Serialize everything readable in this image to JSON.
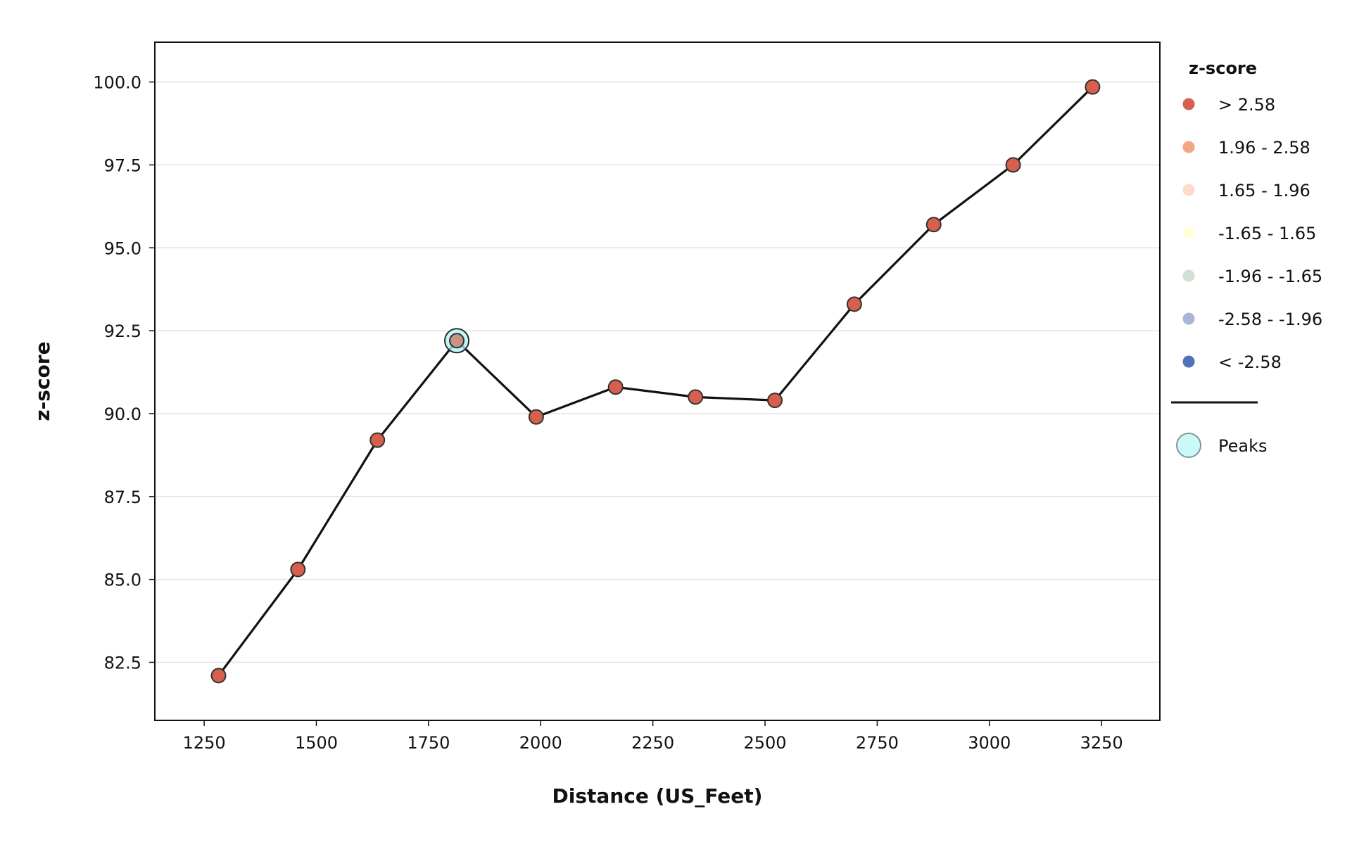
{
  "chart_data": {
    "type": "line",
    "xlabel": "Distance (US_Feet)",
    "ylabel": "z-score",
    "xlim": [
      1140,
      3380
    ],
    "ylim": [
      80.75,
      101.2
    ],
    "xticks": [
      1250,
      1500,
      1750,
      2000,
      2250,
      2500,
      2750,
      3000,
      3250
    ],
    "xtick_labels": [
      "1250",
      "1500",
      "1750",
      "2000",
      "2250",
      "2500",
      "2750",
      "3000",
      "3250"
    ],
    "yticks": [
      82.5,
      85.0,
      87.5,
      90.0,
      92.5,
      95.0,
      97.5,
      100.0
    ],
    "ytick_labels": [
      "82.5",
      "85.0",
      "87.5",
      "90.0",
      "92.5",
      "95.0",
      "97.5",
      "100.0"
    ],
    "grid": "horizontal",
    "series": [
      {
        "x": [
          1282,
          1459,
          1636,
          1813,
          1990,
          2167,
          2345,
          2522,
          2699,
          2876,
          3053,
          3230
        ],
        "y": [
          82.1,
          85.3,
          89.2,
          92.2,
          89.9,
          90.8,
          90.5,
          90.4,
          93.3,
          95.7,
          97.5,
          99.85
        ],
        "point_class": [
          "> 2.58",
          "> 2.58",
          "> 2.58",
          "> 2.58",
          "> 2.58",
          "> 2.58",
          "> 2.58",
          "> 2.58",
          "> 2.58",
          "> 2.58",
          "> 2.58",
          "> 2.58"
        ]
      }
    ],
    "peaks": [
      {
        "x": 1813,
        "y": 92.2
      }
    ],
    "legend": {
      "placement": "right",
      "title": "z-score",
      "classes": [
        {
          "label": "> 2.58",
          "color": "#d6604d"
        },
        {
          "label": "1.96 - 2.58",
          "color": "#f4a582"
        },
        {
          "label": "1.65 - 1.96",
          "color": "#fddbc7"
        },
        {
          "label": "-1.65 - 1.65",
          "color": "#ffffd9"
        },
        {
          "label": "-1.96 - -1.65",
          "color": "#d1e0d5"
        },
        {
          "label": "-2.58 - -1.96",
          "color": "#a9b6d6"
        },
        {
          "label": "< -2.58",
          "color": "#4f72b8"
        }
      ],
      "peaks_label": "Peaks"
    },
    "colors": {
      "line": "#111111",
      "marker_edge": "#333333",
      "peak_fill": "#a8f5f7",
      "peak_edge": "#2b2b2b",
      "grid": "#e3e3e3"
    }
  }
}
